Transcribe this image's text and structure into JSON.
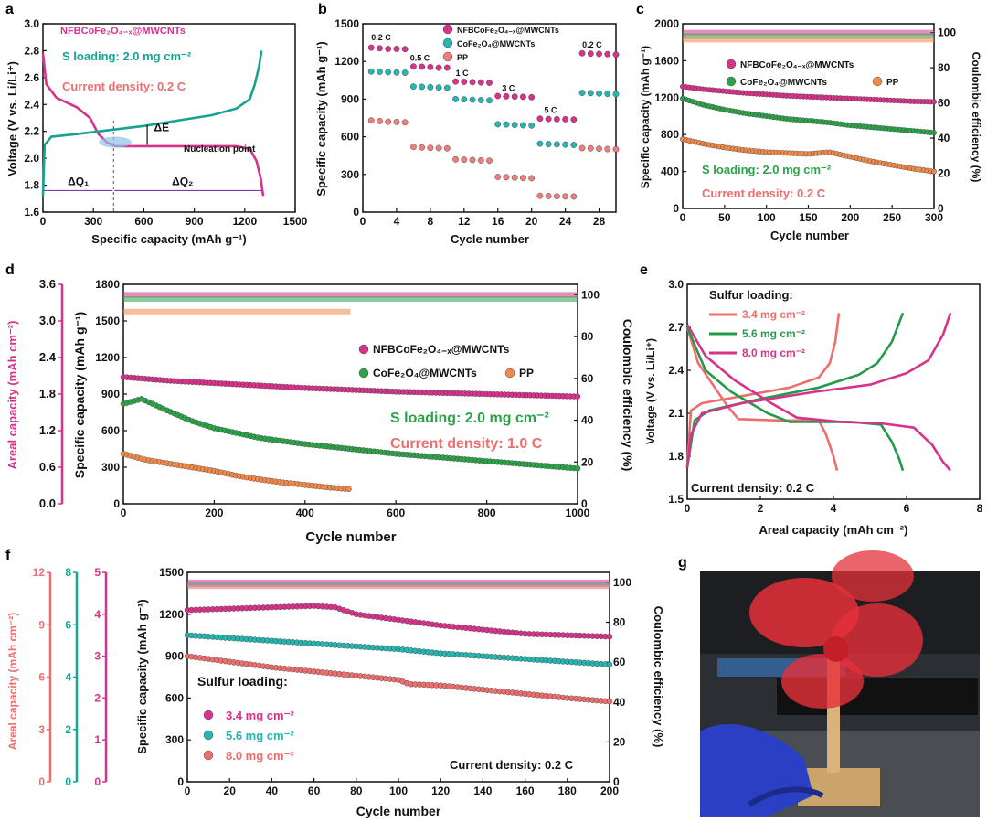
{
  "panel_labels": {
    "a": "a",
    "b": "b",
    "c": "c",
    "d": "d",
    "e": "e",
    "f": "f",
    "g": "g"
  },
  "chart_data": [
    {
      "id": "a",
      "type": "line",
      "xlabel": "Specific capacity (mAh g⁻¹)",
      "ylabel": "Voltage (V vs. Li/Li⁺)",
      "xlim": [
        0,
        1500
      ],
      "ylim": [
        1.6,
        3.0
      ],
      "xticks": [
        0,
        300,
        600,
        900,
        1200,
        1500
      ],
      "yticks": [
        1.6,
        1.8,
        2.0,
        2.2,
        2.4,
        2.6,
        2.8,
        3.0
      ],
      "texts": {
        "material": "NFBCoFe₂O₄₋ₓ@MWCNTs",
        "loading": "S loading: 2.0 mg cm⁻²",
        "current": "Current density: 0.2 C",
        "deltaE": "ΔE",
        "nucleation": "Nucleation point",
        "dq1": "ΔQ₁",
        "dq2": "ΔQ₂"
      },
      "series": [
        {
          "name": "discharge",
          "color": "#d6338a",
          "points": [
            [
              0,
              2.78
            ],
            [
              20,
              2.55
            ],
            [
              80,
              2.45
            ],
            [
              200,
              2.38
            ],
            [
              280,
              2.3
            ],
            [
              330,
              2.18
            ],
            [
              380,
              2.12
            ],
            [
              430,
              2.09
            ],
            [
              600,
              2.09
            ],
            [
              900,
              2.09
            ],
            [
              1150,
              2.09
            ],
            [
              1230,
              2.07
            ],
            [
              1270,
              1.98
            ],
            [
              1295,
              1.85
            ],
            [
              1310,
              1.72
            ]
          ]
        },
        {
          "name": "charge",
          "color": "#16a394",
          "points": [
            [
              0,
              1.72
            ],
            [
              10,
              2.1
            ],
            [
              50,
              2.16
            ],
            [
              200,
              2.18
            ],
            [
              400,
              2.21
            ],
            [
              600,
              2.24
            ],
            [
              800,
              2.28
            ],
            [
              1000,
              2.32
            ],
            [
              1150,
              2.37
            ],
            [
              1230,
              2.44
            ],
            [
              1260,
              2.55
            ],
            [
              1285,
              2.68
            ],
            [
              1300,
              2.8
            ]
          ]
        }
      ]
    },
    {
      "id": "b",
      "type": "scatter",
      "xlabel": "Cycle number",
      "ylabel": "Specific capacity (mAh g⁻¹)",
      "xlim": [
        0,
        30
      ],
      "ylim": [
        0,
        1500
      ],
      "xticks": [
        0,
        4,
        8,
        12,
        16,
        20,
        24,
        28
      ],
      "yticks": [
        0,
        300,
        600,
        900,
        1200,
        1500
      ],
      "rate_labels": [
        "0.2 C",
        "0.5 C",
        "1 C",
        "3 C",
        "5 C",
        "0.2 C"
      ],
      "series": [
        {
          "name": "NFBCoFe₂O₄₋ₓ@MWCNTs",
          "color": "#d6338a",
          "values": [
            1310,
            1305,
            1300,
            1300,
            1298,
            1160,
            1158,
            1155,
            1150,
            1150,
            1040,
            1038,
            1035,
            1033,
            1030,
            925,
            922,
            920,
            918,
            915,
            745,
            742,
            740,
            740,
            738,
            1265,
            1262,
            1260,
            1258,
            1255
          ]
        },
        {
          "name": "CoFe₂O₄@MWCNTs",
          "color": "#27b5b0",
          "values": [
            1120,
            1118,
            1115,
            1112,
            1110,
            1000,
            998,
            995,
            992,
            990,
            900,
            898,
            895,
            892,
            890,
            700,
            698,
            695,
            692,
            690,
            545,
            542,
            540,
            538,
            535,
            950,
            948,
            945,
            942,
            940
          ]
        },
        {
          "name": "PP",
          "color": "#ee7e7e",
          "values": [
            730,
            725,
            720,
            718,
            715,
            520,
            515,
            512,
            510,
            508,
            420,
            418,
            415,
            412,
            410,
            280,
            278,
            275,
            272,
            270,
            130,
            128,
            126,
            125,
            124,
            510,
            508,
            505,
            502,
            500
          ]
        }
      ]
    },
    {
      "id": "c",
      "type": "scatter",
      "xlabel": "Cycle number",
      "ylabel": "Specific capacity (mAh g⁻¹)",
      "y2label": "Coulombic efficiency (%)",
      "xlim": [
        0,
        300
      ],
      "ylim": [
        0,
        2000
      ],
      "y2lim": [
        0,
        105
      ],
      "xticks": [
        0,
        50,
        100,
        150,
        200,
        250,
        300
      ],
      "yticks": [
        0,
        400,
        800,
        1200,
        1600,
        2000
      ],
      "y2ticks": [
        0,
        20,
        40,
        60,
        80,
        100
      ],
      "loading": "S loading: 2.0 mg cm⁻²",
      "current": "Current density: 0.2 C",
      "series": [
        {
          "name": "NFBCoFe₂O₄₋ₓ@MWCNTs",
          "color": "#d6338a",
          "x": [
            0,
            25,
            50,
            75,
            100,
            125,
            150,
            175,
            200,
            225,
            250,
            275,
            300
          ],
          "values": [
            1320,
            1290,
            1270,
            1250,
            1235,
            1220,
            1210,
            1200,
            1190,
            1180,
            1170,
            1160,
            1155
          ],
          "ce": 100
        },
        {
          "name": "CoFe₂O₄@MWCNTs",
          "color": "#2ea24a",
          "x": [
            0,
            25,
            50,
            75,
            100,
            125,
            150,
            175,
            200,
            225,
            250,
            275,
            300
          ],
          "values": [
            1190,
            1120,
            1070,
            1030,
            1000,
            970,
            950,
            930,
            900,
            880,
            860,
            840,
            820
          ],
          "ce": 98
        },
        {
          "name": "PP",
          "color": "#f08a4b",
          "x": [
            0,
            25,
            50,
            75,
            100,
            125,
            150,
            175,
            200,
            225,
            250,
            275,
            300
          ],
          "values": [
            750,
            700,
            660,
            630,
            610,
            600,
            590,
            610,
            560,
            510,
            470,
            430,
            400
          ],
          "ce": 96
        }
      ]
    },
    {
      "id": "d",
      "type": "scatter",
      "xlabel": "Cycle number",
      "ylabel": "Specific capacity (mAh g⁻¹)",
      "y2label": "Coulombic efficiency (%)",
      "y0label": "Areal capacity (mAh cm⁻²)",
      "xlim": [
        0,
        1000
      ],
      "ylim": [
        0,
        1800
      ],
      "y2lim": [
        0,
        105
      ],
      "y0lim": [
        0,
        3.6
      ],
      "xticks": [
        0,
        200,
        400,
        600,
        800,
        1000
      ],
      "yticks": [
        0,
        300,
        600,
        900,
        1200,
        1500,
        1800
      ],
      "y2ticks": [
        0,
        20,
        40,
        60,
        80,
        100
      ],
      "y0ticks": [
        "0.0",
        "0.6",
        "1.2",
        "1.8",
        "2.4",
        "3.0",
        "3.6"
      ],
      "loading": "S loading: 2.0 mg cm⁻²",
      "current": "Current density: 1.0 C",
      "series": [
        {
          "name": "NFBCoFe₂O₄₋ₓ@MWCNTs",
          "color": "#d6338a",
          "x": [
            0,
            100,
            200,
            300,
            400,
            500,
            600,
            700,
            800,
            900,
            1000
          ],
          "values": [
            1040,
            1010,
            990,
            970,
            950,
            935,
            920,
            910,
            900,
            890,
            880
          ],
          "ce": 100,
          "ce_end": 1000
        },
        {
          "name": "CoFe₂O₄@MWCNTs",
          "color": "#2ea24a",
          "x": [
            0,
            40,
            100,
            150,
            200,
            300,
            400,
            500,
            600,
            700,
            800,
            900,
            1000
          ],
          "values": [
            820,
            860,
            760,
            680,
            620,
            540,
            490,
            450,
            410,
            380,
            350,
            320,
            290
          ],
          "ce": 98,
          "ce_end": 1000
        },
        {
          "name": "PP",
          "color": "#f08a4b",
          "x": [
            0,
            50,
            100,
            150,
            200,
            250,
            300,
            350,
            400,
            450,
            500
          ],
          "values": [
            410,
            360,
            330,
            300,
            270,
            230,
            200,
            175,
            155,
            135,
            120
          ],
          "ce": 92,
          "ce_end": 500
        }
      ]
    },
    {
      "id": "e",
      "type": "line",
      "xlabel": "Areal capacity (mAh cm⁻²)",
      "ylabel": "Voltage (V vs. Li/Li⁺)",
      "xlim": [
        0,
        8
      ],
      "ylim": [
        1.5,
        3.0
      ],
      "xticks": [
        0,
        2,
        4,
        6,
        8
      ],
      "yticks": [
        1.5,
        1.8,
        2.1,
        2.4,
        2.7,
        3.0
      ],
      "legend_title": "Sulfur loading:",
      "current": "Current density:  0.2 C",
      "series": [
        {
          "name": "3.4 mg cm⁻²",
          "color": "#ee6e6e",
          "discharge": [
            [
              0,
              2.7
            ],
            [
              0.3,
              2.45
            ],
            [
              0.7,
              2.3
            ],
            [
              1.1,
              2.15
            ],
            [
              1.4,
              2.06
            ],
            [
              2.5,
              2.05
            ],
            [
              3.6,
              2.05
            ],
            [
              3.8,
              1.95
            ],
            [
              4.0,
              1.8
            ],
            [
              4.1,
              1.7
            ]
          ],
          "charge": [
            [
              0,
              1.72
            ],
            [
              0.1,
              2.12
            ],
            [
              0.4,
              2.17
            ],
            [
              1.5,
              2.22
            ],
            [
              2.8,
              2.28
            ],
            [
              3.6,
              2.35
            ],
            [
              3.9,
              2.45
            ],
            [
              4.05,
              2.6
            ],
            [
              4.15,
              2.8
            ]
          ]
        },
        {
          "name": "5.6 mg cm⁻²",
          "color": "#239a4a",
          "discharge": [
            [
              0,
              2.7
            ],
            [
              0.5,
              2.4
            ],
            [
              1.2,
              2.25
            ],
            [
              2.2,
              2.1
            ],
            [
              2.8,
              2.04
            ],
            [
              4.5,
              2.04
            ],
            [
              5.3,
              2.02
            ],
            [
              5.6,
              1.9
            ],
            [
              5.8,
              1.78
            ],
            [
              5.9,
              1.7
            ]
          ],
          "charge": [
            [
              0,
              1.72
            ],
            [
              0.2,
              2.05
            ],
            [
              0.6,
              2.12
            ],
            [
              2,
              2.2
            ],
            [
              3.6,
              2.28
            ],
            [
              4.7,
              2.37
            ],
            [
              5.2,
              2.45
            ],
            [
              5.6,
              2.6
            ],
            [
              5.9,
              2.8
            ]
          ]
        },
        {
          "name": "8.0 mg cm⁻²",
          "color": "#d6338a",
          "discharge": [
            [
              0,
              2.72
            ],
            [
              0.5,
              2.5
            ],
            [
              1.3,
              2.33
            ],
            [
              2.3,
              2.17
            ],
            [
              3,
              2.07
            ],
            [
              4.2,
              2.04
            ],
            [
              5.3,
              2.03
            ],
            [
              6.2,
              2.0
            ],
            [
              6.7,
              1.88
            ],
            [
              7.0,
              1.76
            ],
            [
              7.2,
              1.7
            ]
          ],
          "charge": [
            [
              0,
              1.72
            ],
            [
              0.1,
              1.95
            ],
            [
              0.4,
              2.1
            ],
            [
              1.5,
              2.17
            ],
            [
              3.5,
              2.25
            ],
            [
              5,
              2.3
            ],
            [
              6,
              2.38
            ],
            [
              6.6,
              2.47
            ],
            [
              7,
              2.65
            ],
            [
              7.2,
              2.8
            ]
          ]
        }
      ]
    },
    {
      "id": "f",
      "type": "scatter",
      "xlabel": "Cycle number",
      "ylabel": "Specific capacity (mAh g⁻¹)",
      "y2label": "Coulombic efficiency (%)",
      "y0label": "Areal capacity (mAh cm⁻²)",
      "xlim": [
        0,
        200
      ],
      "ylim": [
        0,
        1500
      ],
      "y2lim": [
        0,
        105
      ],
      "xticks": [
        0,
        20,
        40,
        60,
        80,
        100,
        120,
        140,
        160,
        180,
        200
      ],
      "yticks": [
        0,
        300,
        600,
        900,
        1200,
        1500
      ],
      "y2ticks": [
        0,
        20,
        40,
        60,
        80,
        100
      ],
      "areal_axes": [
        {
          "color": "#ee6e6e",
          "max": 12,
          "ticks": [
            0,
            3,
            6,
            9,
            12
          ]
        },
        {
          "color": "#16a394",
          "max": 8,
          "ticks": [
            0,
            2,
            4,
            6,
            8
          ]
        },
        {
          "color": "#d6338a",
          "max": 5,
          "ticks": [
            0,
            1,
            2,
            3,
            4,
            5
          ]
        }
      ],
      "legend_title": "Sulfur loading:",
      "current": "Current density: 0.2 C",
      "series": [
        {
          "name": "3.4 mg cm⁻²",
          "color": "#d6338a",
          "x": [
            0,
            20,
            40,
            60,
            70,
            80,
            100,
            120,
            140,
            160,
            180,
            200
          ],
          "values": [
            1230,
            1240,
            1250,
            1260,
            1250,
            1200,
            1160,
            1120,
            1090,
            1060,
            1050,
            1040
          ],
          "ce": 100
        },
        {
          "name": "5.6 mg cm⁻²",
          "color": "#27b5b0",
          "x": [
            0,
            20,
            40,
            60,
            80,
            100,
            120,
            140,
            160,
            180,
            200
          ],
          "values": [
            1050,
            1030,
            1010,
            990,
            970,
            950,
            920,
            900,
            880,
            860,
            840
          ],
          "ce": 99
        },
        {
          "name": "8.0 mg cm⁻²",
          "color": "#ee6e6e",
          "x": [
            0,
            20,
            40,
            60,
            80,
            100,
            105,
            120,
            140,
            160,
            180,
            200
          ],
          "values": [
            900,
            860,
            820,
            790,
            760,
            730,
            700,
            690,
            660,
            630,
            600,
            575
          ],
          "ce": 98
        }
      ]
    }
  ]
}
